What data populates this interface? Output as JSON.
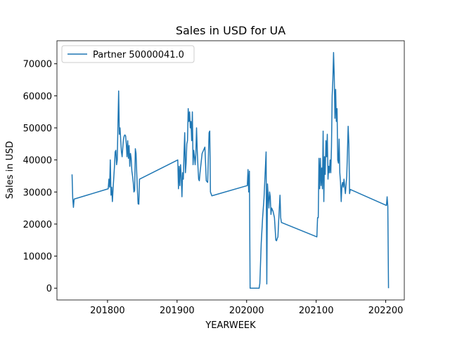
{
  "chart_data": {
    "type": "line",
    "title": "Sales in USD for UA",
    "x_label": "YEARWEEK",
    "y_label": "Sales in USD",
    "x": [
      201749,
      201750,
      201751,
      201752,
      201801,
      201802,
      201803,
      201804,
      201805,
      201806,
      201807,
      201808,
      201810,
      201811,
      201812,
      201813,
      201814,
      201816,
      201817,
      201818,
      201819,
      201820,
      201821,
      201822,
      201823,
      201824,
      201825,
      201826,
      201827,
      201828,
      201829,
      201830,
      201831,
      201832,
      201833,
      201834,
      201835,
      201836,
      201837,
      201838,
      201839,
      201840,
      201841,
      201842,
      201843,
      201844,
      201845,
      201846,
      201901,
      201902,
      201903,
      201904,
      201905,
      201906,
      201907,
      201908,
      201909,
      201910,
      201911,
      201912,
      201913,
      201914,
      201915,
      201916,
      201917,
      201918,
      201919,
      201920,
      201921,
      201922,
      201923,
      201924,
      201925,
      201926,
      201927,
      201928,
      201929,
      201930,
      201931,
      201932,
      201933,
      201936,
      201940,
      201942,
      201944,
      201946,
      201947,
      201948,
      201950,
      202001,
      202002,
      202003,
      202004,
      202005,
      202018,
      202019,
      202021,
      202023,
      202025,
      202028,
      202029,
      202030,
      202032,
      202033,
      202034,
      202035,
      202036,
      202038,
      202040,
      202042,
      202043,
      202044,
      202045,
      202047,
      202048,
      202049,
      202050,
      202101,
      202102,
      202103,
      202104,
      202105,
      202106,
      202107,
      202108,
      202109,
      202110,
      202111,
      202112,
      202113,
      202114,
      202115,
      202116,
      202117,
      202118,
      202119,
      202120,
      202121,
      202122,
      202123,
      202124,
      202125,
      202126,
      202127,
      202128,
      202129,
      202130,
      202131,
      202132,
      202133,
      202134,
      202135,
      202136,
      202137,
      202138,
      202139,
      202140,
      202142,
      202144,
      202146,
      202147,
      202148,
      202149,
      202201,
      202202,
      202203,
      202204
    ],
    "series": [
      {
        "name": "Partner 50000041.0",
        "color": "#1f77b4",
        "values": [
          35500,
          28000,
          25200,
          27800,
          31000,
          34000,
          31500,
          40000,
          29000,
          31500,
          27000,
          31000,
          38000,
          42500,
          43000,
          38500,
          40000,
          61500,
          48000,
          50000,
          46000,
          42500,
          41000,
          44000,
          46500,
          47500,
          47800,
          47500,
          45000,
          41000,
          46000,
          40500,
          44500,
          38000,
          42000,
          40500,
          36500,
          35000,
          33000,
          30000,
          30500,
          43500,
          42000,
          36000,
          30500,
          26300,
          26200,
          34000,
          40000,
          31000,
          38000,
          32000,
          38500,
          35000,
          28500,
          36000,
          34000,
          42000,
          48500,
          36000,
          39000,
          45000,
          46000,
          56000,
          52000,
          55000,
          50000,
          52000,
          46000,
          55000,
          38500,
          43000,
          41000,
          38500,
          42000,
          50000,
          43000,
          38000,
          34000,
          33500,
          36000,
          42000,
          44000,
          33500,
          33000,
          48500,
          49000,
          30000,
          28800,
          32000,
          37000,
          30000,
          36500,
          0,
          0,
          1500,
          14000,
          22000,
          28000,
          42500,
          1300,
          32500,
          25000,
          30000,
          28500,
          23000,
          25000,
          24000,
          22000,
          15000,
          14800,
          15500,
          16000,
          25000,
          29000,
          22000,
          20500,
          16000,
          22000,
          22000,
          40500,
          31000,
          40500,
          32000,
          37500,
          31000,
          49000,
          27000,
          41000,
          35500,
          46000,
          41000,
          48000,
          34000,
          38000,
          36000,
          40000,
          36000,
          44000,
          60000,
          65000,
          73500,
          66000,
          53000,
          62000,
          52000,
          56000,
          40000,
          39000,
          46500,
          36000,
          33000,
          27000,
          32000,
          33000,
          31500,
          34000,
          29500,
          35000,
          50500,
          45000,
          29500,
          30800,
          25800,
          28500,
          25500,
          0
        ]
      }
    ],
    "xlim": [
      201727.3,
      202226.7
    ],
    "ylim": [
      -3675,
      77175
    ],
    "xticks": [
      201800,
      201900,
      202000,
      202100,
      202200
    ],
    "yticks": [
      0,
      10000,
      20000,
      30000,
      40000,
      50000,
      60000,
      70000
    ],
    "grid": false,
    "legend": "upper left"
  }
}
